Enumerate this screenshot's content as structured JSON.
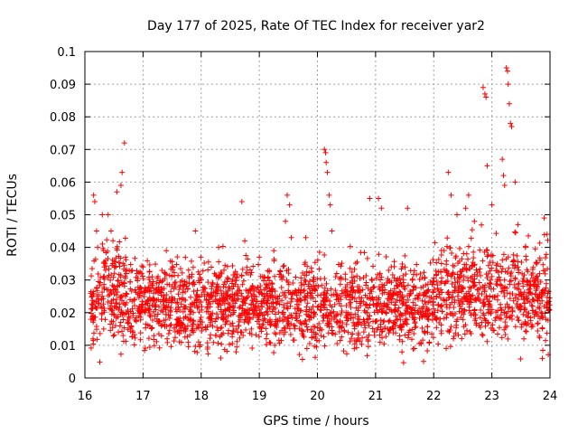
{
  "chart_data": {
    "type": "scatter",
    "title": "Day 177 of 2025, Rate Of TEC Index for receiver yar2",
    "xlabel": "GPS time / hours",
    "ylabel": "ROTI / TECUs",
    "xlim": [
      16,
      24
    ],
    "ylim": [
      0,
      0.1
    ],
    "xticks": [
      16,
      17,
      18,
      19,
      20,
      21,
      22,
      23,
      24
    ],
    "xtick_labels": [
      "16",
      "17",
      "18",
      "19",
      "20",
      "21",
      "22",
      "23",
      "24"
    ],
    "yticks": [
      0,
      0.01,
      0.02,
      0.03,
      0.04,
      0.05,
      0.06,
      0.07,
      0.08,
      0.09,
      0.1
    ],
    "ytick_labels": [
      "0",
      "0.01",
      "0.02",
      "0.03",
      "0.04",
      "0.05",
      "0.06",
      "0.07",
      "0.08",
      "0.09",
      "0.1"
    ],
    "grid": true,
    "marker": "plus",
    "color": "#ff0000",
    "series": [
      {
        "name": "ROTI",
        "points": [
          [
            16.15,
            0.056
          ],
          [
            16.17,
            0.054
          ],
          [
            16.2,
            0.045
          ],
          [
            16.22,
            0.04
          ],
          [
            16.3,
            0.05
          ],
          [
            16.4,
            0.05
          ],
          [
            16.45,
            0.045
          ],
          [
            16.55,
            0.057
          ],
          [
            16.62,
            0.059
          ],
          [
            16.64,
            0.063
          ],
          [
            16.68,
            0.072
          ],
          [
            16.7,
            0.037
          ],
          [
            17.0,
            0.034
          ],
          [
            17.4,
            0.039
          ],
          [
            17.9,
            0.045
          ],
          [
            18.3,
            0.04
          ],
          [
            18.7,
            0.054
          ],
          [
            18.75,
            0.042
          ],
          [
            19.0,
            0.037
          ],
          [
            19.25,
            0.039
          ],
          [
            19.45,
            0.048
          ],
          [
            19.48,
            0.056
          ],
          [
            19.52,
            0.053
          ],
          [
            19.55,
            0.043
          ],
          [
            19.8,
            0.043
          ],
          [
            20.12,
            0.07
          ],
          [
            20.14,
            0.069
          ],
          [
            20.15,
            0.066
          ],
          [
            20.17,
            0.063
          ],
          [
            20.2,
            0.056
          ],
          [
            20.22,
            0.053
          ],
          [
            20.25,
            0.045
          ],
          [
            20.9,
            0.055
          ],
          [
            21.05,
            0.055
          ],
          [
            21.1,
            0.052
          ],
          [
            21.55,
            0.052
          ],
          [
            22.25,
            0.063
          ],
          [
            22.3,
            0.056
          ],
          [
            22.4,
            0.05
          ],
          [
            22.55,
            0.052
          ],
          [
            22.6,
            0.056
          ],
          [
            22.7,
            0.048
          ],
          [
            22.85,
            0.089
          ],
          [
            22.88,
            0.087
          ],
          [
            22.9,
            0.086
          ],
          [
            22.92,
            0.065
          ],
          [
            23.0,
            0.053
          ],
          [
            23.18,
            0.067
          ],
          [
            23.2,
            0.062
          ],
          [
            23.22,
            0.059
          ],
          [
            23.25,
            0.095
          ],
          [
            23.27,
            0.094
          ],
          [
            23.28,
            0.09
          ],
          [
            23.3,
            0.084
          ],
          [
            23.32,
            0.078
          ],
          [
            23.34,
            0.077
          ],
          [
            23.4,
            0.06
          ],
          [
            23.45,
            0.047
          ],
          [
            23.9,
            0.049
          ],
          [
            23.95,
            0.044
          ]
        ],
        "dense_band": {
          "x_range": [
            16.1,
            24
          ],
          "typical_range": [
            0.003,
            0.04
          ],
          "point_count": 2600
        }
      }
    ]
  }
}
